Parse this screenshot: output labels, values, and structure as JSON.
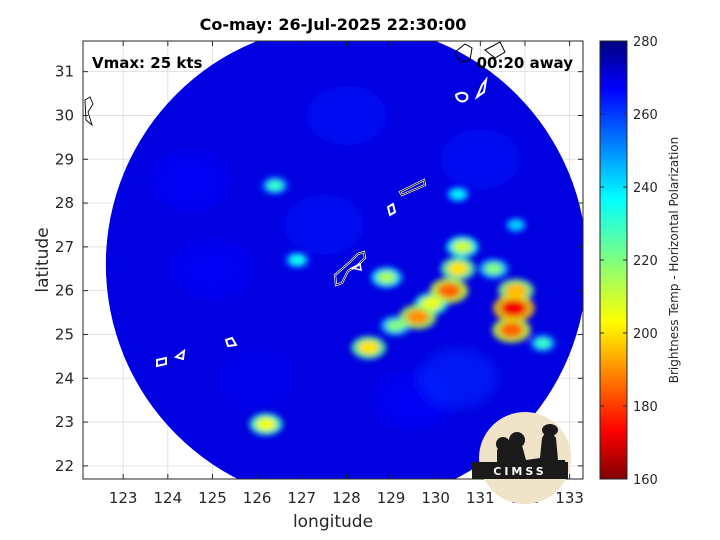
{
  "chart_data": {
    "type": "heatmap",
    "title": "Co-may: 26-Jul-2025 22:30:00",
    "xlabel": "longitude",
    "ylabel": "latitude",
    "xlim": [
      122.1,
      133.3
    ],
    "ylim": [
      21.7,
      31.7
    ],
    "x_ticks": [
      123,
      124,
      125,
      126,
      127,
      128,
      129,
      130,
      131,
      132,
      133
    ],
    "y_ticks": [
      22,
      23,
      24,
      25,
      26,
      27,
      28,
      29,
      30,
      31
    ],
    "grid": true,
    "colorbar": {
      "label": "Brightness Temp - Horizontal Polarization",
      "range": [
        160,
        280
      ],
      "ticks": [
        160,
        180,
        200,
        220,
        240,
        260,
        280
      ],
      "colormap": "jet"
    },
    "swath": {
      "center": [
        128.0,
        26.6
      ],
      "radius_deg": 5.5
    },
    "background_value": 270,
    "features": [
      {
        "lon": 131.75,
        "lat": 25.6,
        "value": 172
      },
      {
        "lon": 131.7,
        "lat": 25.1,
        "value": 185
      },
      {
        "lon": 131.8,
        "lat": 26.0,
        "value": 195
      },
      {
        "lon": 131.3,
        "lat": 26.5,
        "value": 220
      },
      {
        "lon": 130.3,
        "lat": 26.0,
        "value": 185
      },
      {
        "lon": 130.5,
        "lat": 26.5,
        "value": 200
      },
      {
        "lon": 130.6,
        "lat": 27.0,
        "value": 210
      },
      {
        "lon": 129.6,
        "lat": 25.4,
        "value": 190
      },
      {
        "lon": 129.9,
        "lat": 25.7,
        "value": 205
      },
      {
        "lon": 129.1,
        "lat": 25.2,
        "value": 220
      },
      {
        "lon": 128.5,
        "lat": 24.7,
        "value": 200
      },
      {
        "lon": 128.9,
        "lat": 26.3,
        "value": 215
      },
      {
        "lon": 126.2,
        "lat": 22.95,
        "value": 205
      },
      {
        "lon": 126.4,
        "lat": 28.4,
        "value": 230
      },
      {
        "lon": 126.9,
        "lat": 26.7,
        "value": 235
      },
      {
        "lon": 130.5,
        "lat": 28.2,
        "value": 238
      },
      {
        "lon": 131.8,
        "lat": 27.5,
        "value": 242
      },
      {
        "lon": 132.4,
        "lat": 24.8,
        "value": 230
      }
    ],
    "annotations": {
      "vmax": "Vmax: 25 kts",
      "time_away": "00:20 away"
    },
    "logo": "CIMSS"
  }
}
